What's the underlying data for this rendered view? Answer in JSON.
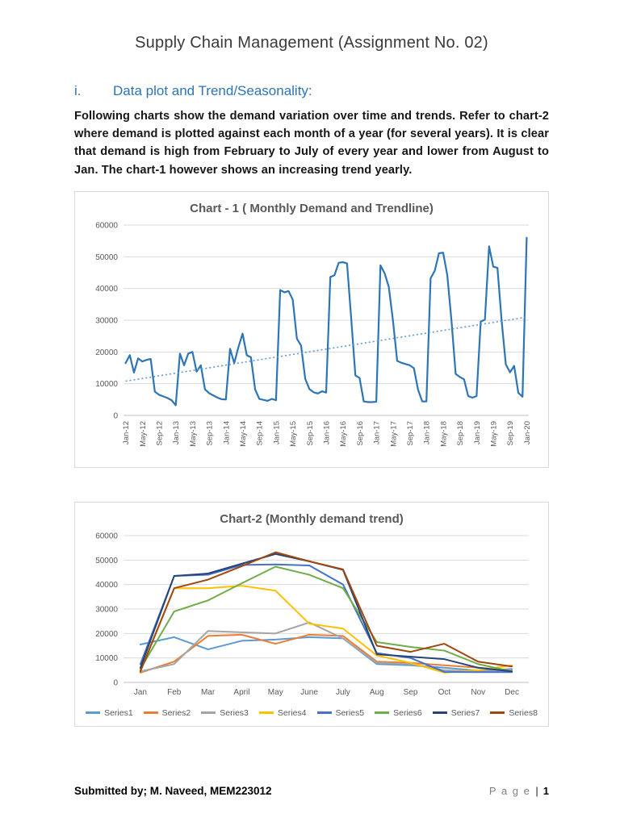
{
  "page": {
    "title": "Supply Chain Management (Assignment No. 02)",
    "heading_number": "i.",
    "heading_text": "Data plot and Trend/Seasonality:",
    "paragraph": "Following charts show the demand variation over time and trends. Refer to chart-2 where demand is plotted against each month of a year (for several years). It is clear that demand is high from February to July of every year and lower from August to Jan. The chart-1 however shows an increasing trend yearly.",
    "footer_left": "Submitted by; M. Naveed,  MEM223012",
    "footer_page_word": "P a g e",
    "footer_separator": "|",
    "footer_page_number": "1"
  },
  "colors": {
    "heading_accent": "#2E74B5",
    "chart_border": "#d9d9d9",
    "axis_text": "#595959",
    "gridline": "#d9d9d9"
  },
  "chart_data": [
    {
      "type": "line",
      "title": "Chart - 1 ( Monthly Demand and Trendline)",
      "ylabel": "",
      "xlabel": "",
      "ylim": [
        0,
        60000
      ],
      "ytick_step": 10000,
      "grid": true,
      "legend": false,
      "line_color": "#2E75B6",
      "x_tick_every": 4,
      "x_tick_labels": [
        "Jan-12",
        "May-12",
        "Sep-12",
        "Jan-13",
        "May-13",
        "Sep-13",
        "Jan-14",
        "May-14",
        "Sep-14",
        "Jan-15",
        "May-15",
        "Sep-15",
        "Jan-16",
        "May-16",
        "Sep-16",
        "Jan-17",
        "May-17",
        "Sep-17",
        "Jan-18",
        "May-18",
        "Sep-18",
        "Jan-19",
        "May-19",
        "Sep-19",
        "Jan-20"
      ],
      "values": [
        16500,
        19000,
        13500,
        18000,
        17000,
        17500,
        17800,
        7500,
        6500,
        6000,
        5500,
        4800,
        3200,
        19500,
        15800,
        19500,
        20000,
        13800,
        15800,
        8200,
        7000,
        6300,
        5600,
        5100,
        5000,
        21000,
        16500,
        21500,
        25800,
        19000,
        18300,
        8200,
        5200,
        4900,
        4600,
        5200,
        4800,
        39500,
        38800,
        39200,
        36500,
        24200,
        22000,
        11500,
        8300,
        7300,
        6900,
        7600,
        7200,
        43600,
        44200,
        48100,
        48300,
        47900,
        30500,
        12600,
        11800,
        4400,
        4200,
        4200,
        4300,
        47300,
        44800,
        40500,
        29800,
        17200,
        16600,
        16200,
        15800,
        14900,
        8100,
        4400,
        4400,
        43200,
        45600,
        51100,
        51300,
        44200,
        29800,
        13100,
        12100,
        11400,
        6100,
        5600,
        6100,
        29600,
        30200,
        53300,
        46900,
        46500,
        29900,
        16100,
        13600,
        15600,
        7100,
        5900,
        56000
      ],
      "trendline": {
        "start": 10800,
        "end": 31000,
        "color": "#5B9BD5",
        "style": "dotted"
      }
    },
    {
      "type": "line",
      "title": "Chart-2 (Monthly demand trend)",
      "ylabel": "",
      "xlabel": "",
      "ylim": [
        0,
        60000
      ],
      "ytick_step": 10000,
      "grid": true,
      "legend": true,
      "legend_position": "bottom",
      "categories": [
        "Jan",
        "Feb",
        "Mar",
        "April",
        "May",
        "June",
        "July",
        "Aug",
        "Sep",
        "Oct",
        "Nov",
        "Dec"
      ],
      "series": [
        {
          "name": "Series1",
          "color": "#5B9BD5",
          "values": [
            15500,
            18500,
            13500,
            17000,
            17500,
            18500,
            18000,
            7500,
            7000,
            6000,
            4800,
            5500
          ]
        },
        {
          "name": "Series2",
          "color": "#ED7D31",
          "values": [
            4000,
            8500,
            19000,
            19500,
            15800,
            19500,
            19000,
            8500,
            8000,
            7000,
            6000,
            5000
          ]
        },
        {
          "name": "Series3",
          "color": "#A5A5A5",
          "values": [
            4500,
            7500,
            21000,
            20500,
            20000,
            24500,
            18000,
            8000,
            7500,
            5000,
            4500,
            5000
          ]
        },
        {
          "name": "Series4",
          "color": "#FFC000",
          "values": [
            5000,
            38500,
            38500,
            39500,
            37500,
            24000,
            22000,
            11000,
            8000,
            4000,
            5000,
            7000
          ]
        },
        {
          "name": "Series5",
          "color": "#4472C4",
          "values": [
            7500,
            43500,
            44000,
            48000,
            48200,
            47800,
            40000,
            12000,
            10000,
            4300,
            4200,
            4200
          ]
        },
        {
          "name": "Series6",
          "color": "#70AD47",
          "values": [
            5500,
            29000,
            33500,
            40500,
            47300,
            44000,
            38500,
            16500,
            14500,
            13000,
            7500,
            4500
          ]
        },
        {
          "name": "Series7",
          "color": "#264478",
          "values": [
            6000,
            43500,
            44500,
            48500,
            52500,
            49500,
            46000,
            11500,
            10500,
            9500,
            6000,
            4500
          ]
        },
        {
          "name": "Series8",
          "color": "#9E480E",
          "values": [
            4500,
            38500,
            42000,
            47500,
            53200,
            49500,
            46200,
            15000,
            12500,
            15800,
            8500,
            6500
          ]
        }
      ]
    }
  ]
}
